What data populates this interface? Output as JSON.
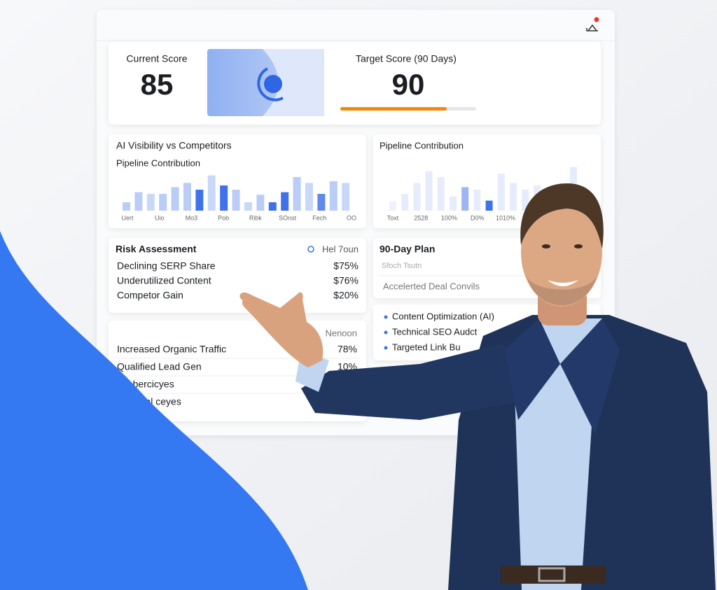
{
  "score_card": {
    "current_label": "Current Score",
    "current_value": "85",
    "target_label": "Target Score (90 Days)",
    "target_value": "90"
  },
  "charts": [
    {
      "type": "bar",
      "title": "AI Visibility vs Competitors",
      "subtitle": "Pipeline Contribution",
      "x_labels": [
        "Uert",
        "Uio",
        "Mo3",
        "Pob",
        "Ribk",
        "SOnst",
        "Fech",
        "OO"
      ],
      "values": [
        20,
        44,
        40,
        40,
        56,
        66,
        50,
        84,
        60,
        50,
        20,
        38,
        20,
        44,
        80,
        66,
        40,
        70,
        66
      ],
      "colors": [
        "#b9cdf7",
        "#b9cdf7",
        "#c9d8f9",
        "#b9cdf7",
        "#b9cdf7",
        "#b9cdf7",
        "#3f72ea",
        "#c9d8f9",
        "#3f72ea",
        "#b9cdf7",
        "#c9d8f9",
        "#b9cdf7",
        "#3f72ea",
        "#3f72ea",
        "#b9cdf7",
        "#c9d8f9",
        "#5f89ee",
        "#b9cdf7",
        "#c9d8f9"
      ],
      "ylim": [
        0,
        100
      ]
    },
    {
      "type": "bar",
      "title": "Pipeline Contribution",
      "x_labels": [
        "Toxt",
        "2528",
        "100%",
        "D0%",
        "1010%"
      ],
      "values": [
        22,
        40,
        66,
        94,
        80,
        34,
        56,
        50,
        24,
        88,
        66,
        50,
        60,
        40,
        62,
        104
      ],
      "colors": [
        "#eef2fc",
        "#e6ecfb",
        "#e6ecfb",
        "#e6ecfb",
        "#e6ecfb",
        "#e6ecfb",
        "#9db6f2",
        "#e6ecfb",
        "#3f72ea",
        "#e6ecfb",
        "#e6ecfb",
        "#e6ecfb",
        "#e6ecfb",
        "#e6ecfb",
        "#e6ecfb",
        "#e6ecfb"
      ],
      "ylim": [
        0,
        110
      ]
    }
  ],
  "risk": {
    "title": "Risk Assessment",
    "tag": "Hel 7oun",
    "rows": [
      [
        "Declining SERP Share",
        "$75%"
      ],
      [
        "Underutilized Content",
        "$76%"
      ],
      [
        "Competor Gain",
        "$20%"
      ]
    ]
  },
  "outcomes": {
    "header": "Nenoon",
    "rows": [
      [
        "Increased Organic Traffic",
        "78%"
      ],
      [
        "Qualified Lead Gen",
        "10%"
      ],
      [
        "ocebercicyes",
        ""
      ],
      [
        "led Deal ceyes",
        ""
      ]
    ]
  },
  "plan": {
    "title": "90-Day Plan",
    "subtitle": "Sfoch Tsutn",
    "row": "Accelerted Deal Convils",
    "items": [
      "Content Optimization (AI)",
      "Technical SEO Audct",
      "Targeted Link Bu"
    ]
  }
}
